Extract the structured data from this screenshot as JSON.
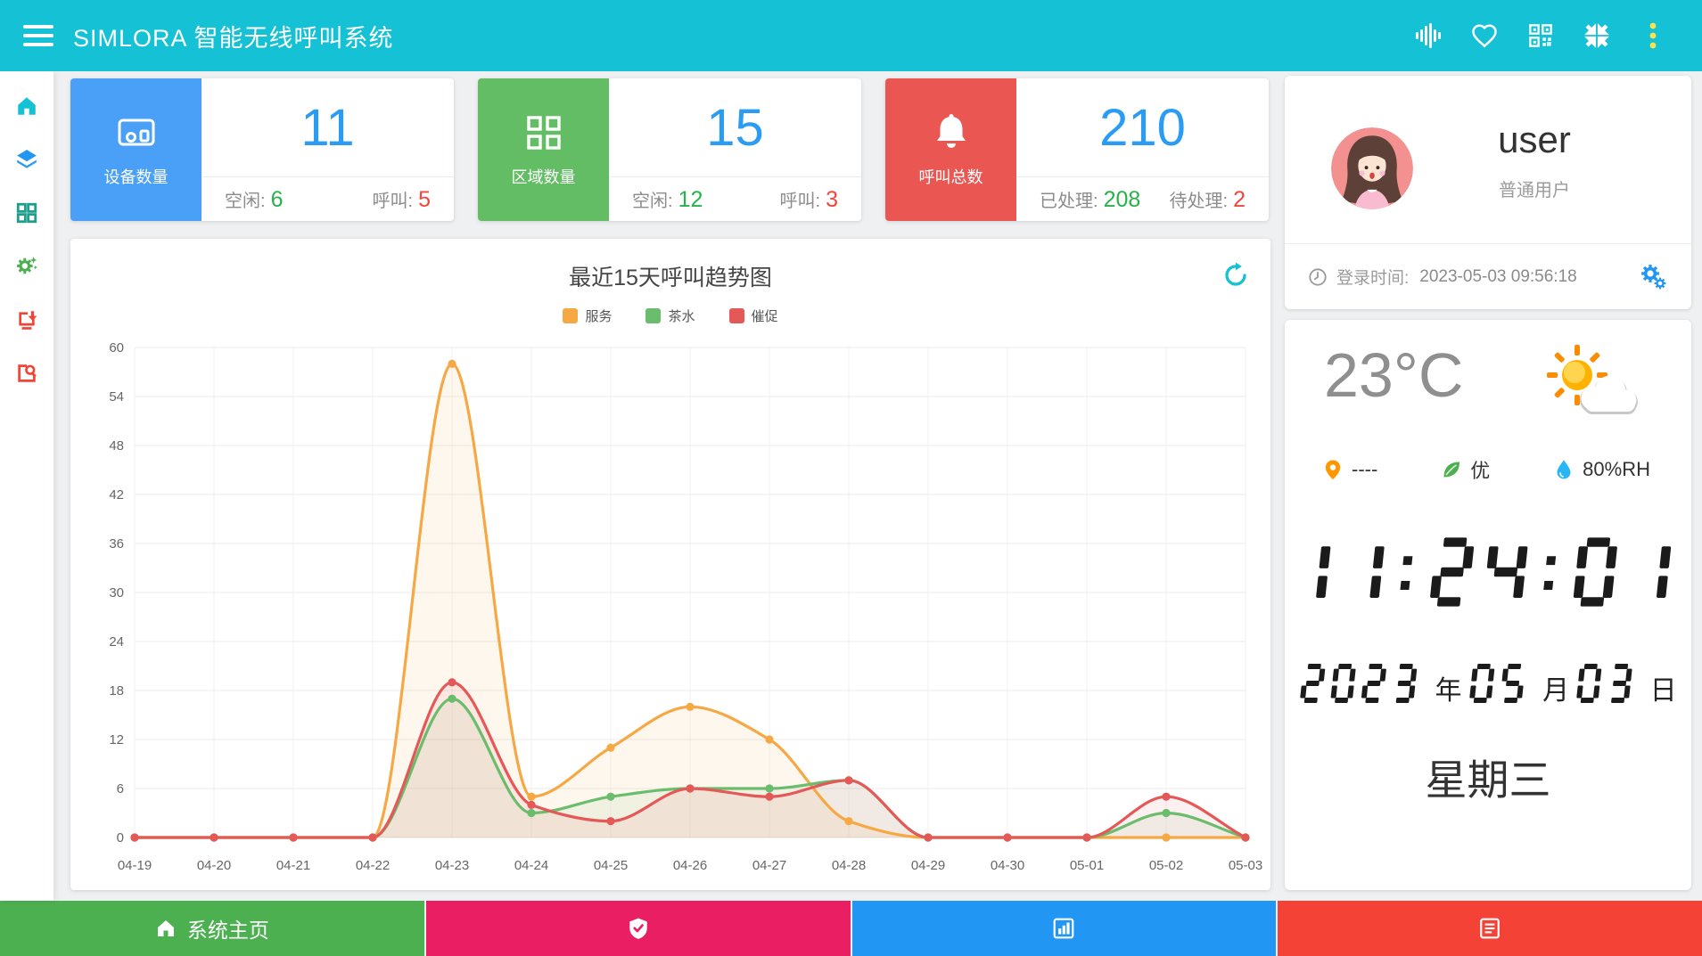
{
  "header": {
    "title": "SIMLORA 智能无线呼叫系统",
    "icons": [
      "voice-waveform",
      "heart",
      "qr-code",
      "compress",
      "more-kebab"
    ],
    "background": "#15c1d4",
    "kebab_dot_color": "#ffe14d"
  },
  "sidebar": {
    "items": [
      {
        "icon": "home",
        "color": "#15c1d4"
      },
      {
        "icon": "layers",
        "color": "#2196f3"
      },
      {
        "icon": "grid-modules",
        "color": "#1f9e8e"
      },
      {
        "icon": "settings-gear",
        "color": "#4caf50"
      },
      {
        "icon": "export-download",
        "color": "#f44336"
      },
      {
        "icon": "image-audit",
        "color": "#f44336"
      }
    ]
  },
  "cards": [
    {
      "label": "设备数量",
      "value": "11",
      "accent": "#4aa0f6",
      "icon": "device-terminal",
      "stat_left_label": "空闲:",
      "stat_left_value": "6",
      "stat_right_label": "呼叫:",
      "stat_right_value": "5"
    },
    {
      "label": "区域数量",
      "value": "15",
      "accent": "#63bd64",
      "icon": "area-grid",
      "stat_left_label": "空闲:",
      "stat_left_value": "12",
      "stat_right_label": "呼叫:",
      "stat_right_value": "3"
    },
    {
      "label": "呼叫总数",
      "value": "210",
      "accent": "#ea5752",
      "icon": "alarm-bell",
      "stat_left_label": "已处理:",
      "stat_left_value": "208",
      "stat_right_label": "待处理:",
      "stat_right_value": "2"
    }
  ],
  "chart_data": {
    "type": "line",
    "title": "最近15天呼叫趋势图",
    "x": [
      "04-19",
      "04-20",
      "04-21",
      "04-22",
      "04-23",
      "04-24",
      "04-25",
      "04-26",
      "04-27",
      "04-28",
      "04-29",
      "04-30",
      "05-01",
      "05-02",
      "05-03"
    ],
    "series": [
      {
        "name": "服务",
        "color": "#f6a844",
        "values": [
          0,
          0,
          0,
          0,
          58,
          5,
          11,
          16,
          12,
          2,
          0,
          0,
          0,
          0,
          0
        ]
      },
      {
        "name": "茶水",
        "color": "#6abd6c",
        "values": [
          0,
          0,
          0,
          0,
          17,
          3,
          5,
          6,
          6,
          7,
          0,
          0,
          0,
          3,
          0
        ]
      },
      {
        "name": "催促",
        "color": "#e45857",
        "values": [
          0,
          0,
          0,
          0,
          19,
          4,
          2,
          6,
          5,
          7,
          0,
          0,
          0,
          5,
          0
        ]
      }
    ],
    "ylim": [
      0,
      60
    ],
    "yticks": [
      0,
      6,
      12,
      18,
      24,
      30,
      36,
      42,
      48,
      54,
      60
    ],
    "grid": true,
    "smooth": true,
    "area": true,
    "markers": true,
    "legend_position": "top"
  },
  "user_card": {
    "name": "user",
    "role": "普通用户",
    "login_label": "登录时间:",
    "login_time": "2023-05-03 09:56:18"
  },
  "weather": {
    "temperature": "23°C",
    "condition_icon": "sun-behind-cloud",
    "location": "----",
    "air_quality": "优",
    "humidity": "80%RH",
    "time": "11:24:01",
    "date": [
      [
        "2023",
        "年"
      ],
      [
        "05",
        "月"
      ],
      [
        "03",
        "日"
      ]
    ],
    "weekday": "星期三"
  },
  "bottom_bar": {
    "items": [
      {
        "icon": "home",
        "label": "系统主页",
        "color": "#4caf50"
      },
      {
        "icon": "shield-check",
        "label": "",
        "color": "#e91e63"
      },
      {
        "icon": "bar-chart",
        "label": "",
        "color": "#2196f3"
      },
      {
        "icon": "form-list",
        "label": "",
        "color": "#f44336"
      }
    ]
  }
}
